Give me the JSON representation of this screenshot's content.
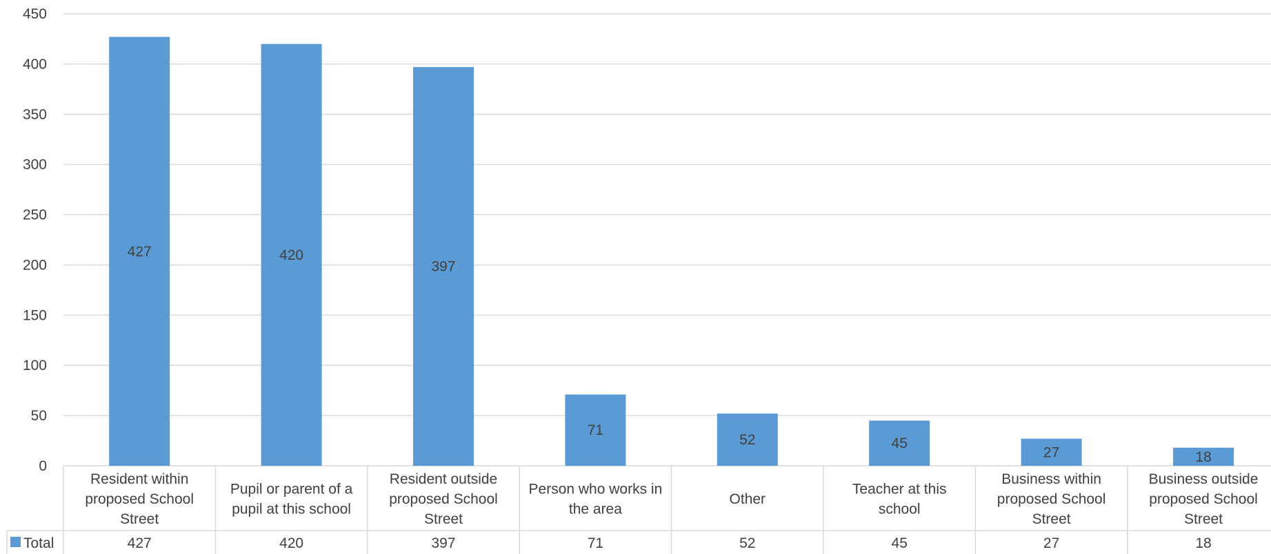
{
  "chart_data": {
    "type": "bar",
    "categories": [
      "Resident within proposed School Street",
      "Pupil or parent of a pupil at this school",
      "Resident outside proposed School Street",
      "Person who works in the area",
      "Other",
      "Teacher at this school",
      "Business within proposed School Street",
      "Business outside proposed School Street"
    ],
    "category_lines": [
      [
        "Resident within",
        "proposed School",
        "Street"
      ],
      [
        "Pupil or parent of a",
        "pupil at this school"
      ],
      [
        "Resident outside",
        "proposed School",
        "Street"
      ],
      [
        "Person who works in",
        "the area"
      ],
      [
        "Other"
      ],
      [
        "Teacher at this",
        "school"
      ],
      [
        "Business within",
        "proposed School",
        "Street"
      ],
      [
        "Business outside",
        "proposed School",
        "Street"
      ]
    ],
    "series": [
      {
        "name": "Total",
        "values": [
          427,
          420,
          397,
          71,
          52,
          45,
          27,
          18
        ]
      }
    ],
    "ylim": [
      0,
      450
    ],
    "yticks": [
      0,
      50,
      100,
      150,
      200,
      250,
      300,
      350,
      400,
      450
    ],
    "grid": true,
    "data_labels": true,
    "data_table": true,
    "bar_color": "#5b9bd5",
    "grid_color": "#d9d9d9",
    "text_color": "#404040"
  }
}
